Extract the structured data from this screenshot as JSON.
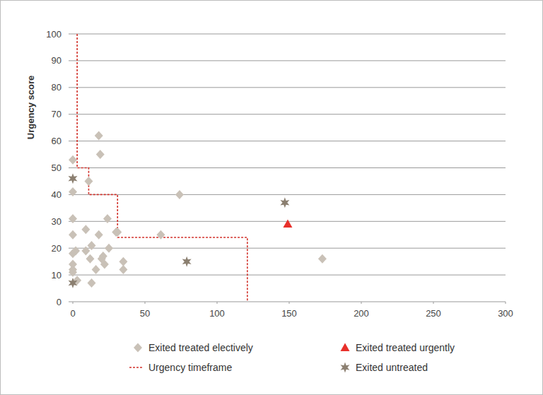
{
  "chart_data": {
    "type": "scatter",
    "y_label": "Urgency score",
    "xlim": [
      0,
      300
    ],
    "xticks": [
      0,
      50,
      100,
      150,
      200,
      250,
      300
    ],
    "ylim": [
      0,
      100
    ],
    "yticks": [
      0,
      10,
      20,
      30,
      40,
      50,
      60,
      70,
      80,
      90,
      100
    ],
    "grid": true,
    "legend": "bottom",
    "series": [
      {
        "name": "Exited treated electively",
        "type": "scatter",
        "marker": "diamond",
        "color": "#c9c1b7",
        "x": [
          0,
          0,
          0,
          0,
          0,
          0,
          0,
          0,
          2,
          3,
          9,
          9,
          11,
          12,
          13,
          13,
          16,
          18,
          18,
          19,
          20,
          21,
          22,
          24,
          25,
          30,
          31,
          35,
          35,
          61,
          74,
          173
        ],
        "values": [
          53,
          41,
          31,
          25,
          18,
          14,
          12,
          11,
          19,
          8,
          27,
          19,
          45,
          16,
          21,
          7,
          12,
          62,
          25,
          55,
          16,
          17,
          14,
          31,
          20,
          26,
          26,
          15,
          12,
          25,
          40,
          16
        ]
      },
      {
        "name": "Exited treated urgently",
        "type": "scatter",
        "marker": "triangle",
        "color": "#e8302a",
        "x": [
          149
        ],
        "values": [
          29
        ]
      },
      {
        "name": "Urgency timeframe",
        "type": "line",
        "marker": "none",
        "line_style": "dashed",
        "color": "#d2332c",
        "x": [
          3,
          3,
          11,
          11,
          31,
          31,
          121,
          121
        ],
        "values": [
          100,
          50,
          50,
          40,
          40,
          24,
          24,
          0
        ]
      },
      {
        "name": "Exited untreated",
        "type": "scatter",
        "marker": "star",
        "color": "#8b7f70",
        "x": [
          0,
          0,
          79,
          147
        ],
        "values": [
          46,
          7,
          15,
          37
        ]
      }
    ]
  }
}
